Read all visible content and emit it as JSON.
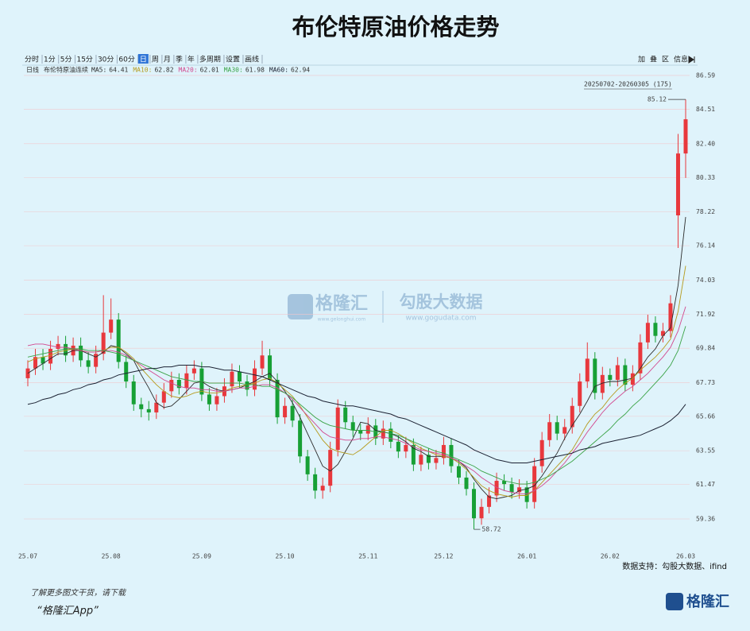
{
  "header": {
    "title": "布伦特原油价格走势"
  },
  "toolbar": {
    "left": [
      "分时",
      "1分",
      "5分",
      "15分",
      "30分",
      "60分",
      "日",
      "周",
      "月",
      "季",
      "年",
      "多周期",
      "设置",
      "画线"
    ],
    "selected": 6,
    "right": [
      "加",
      "叠",
      "区",
      "信息"
    ]
  },
  "chart_data": {
    "type": "candlestick",
    "period": "日线",
    "name": "布伦特原油连续",
    "range_label": "20250702-20260305 (175)",
    "source": "数据支持：勾股大数据、ifind",
    "categories": [
      "25.07",
      null,
      null,
      null,
      null,
      null,
      null,
      null,
      null,
      null,
      null,
      "25.08",
      null,
      null,
      null,
      null,
      null,
      null,
      null,
      null,
      null,
      null,
      null,
      "25.09",
      null,
      null,
      null,
      null,
      null,
      null,
      null,
      null,
      null,
      null,
      "25.10",
      null,
      null,
      null,
      null,
      null,
      null,
      null,
      null,
      null,
      null,
      "25.11",
      null,
      null,
      null,
      null,
      null,
      null,
      null,
      null,
      null,
      "25.12",
      null,
      null,
      null,
      null,
      null,
      null,
      null,
      null,
      null,
      null,
      "26.01",
      null,
      null,
      null,
      null,
      null,
      null,
      null,
      null,
      null,
      null,
      "26.02",
      null,
      null,
      null,
      null,
      null,
      null,
      null,
      null,
      null,
      "26.03"
    ],
    "open": [
      68.0,
      68.6,
      69.3,
      68.9,
      69.8,
      70.1,
      69.4,
      70.0,
      69.1,
      68.7,
      69.5,
      70.8,
      71.6,
      69.0,
      67.8,
      66.4,
      66.1,
      65.9,
      66.5,
      67.2,
      67.9,
      67.4,
      68.3,
      68.6,
      67.0,
      66.4,
      66.9,
      67.5,
      68.4,
      67.8,
      67.3,
      68.6,
      69.4,
      67.9,
      65.6,
      66.3,
      65.4,
      63.2,
      62.1,
      61.1,
      61.4,
      63.6,
      66.2,
      65.3,
      64.8,
      64.6,
      65.1,
      64.3,
      64.9,
      64.1,
      63.5,
      63.9,
      62.7,
      63.3,
      62.8,
      63.1,
      63.9,
      62.6,
      61.9,
      61.2,
      59.4,
      60.1,
      60.8,
      61.7,
      61.5,
      61.0,
      61.3,
      60.4,
      62.6,
      64.2,
      65.3,
      64.6,
      65.0,
      66.3,
      67.8,
      69.2,
      67.1,
      68.2,
      67.9,
      68.8,
      67.6,
      68.3,
      70.2,
      71.4,
      70.6,
      70.9,
      78.0,
      81.8
    ],
    "high": [
      69.1,
      69.8,
      69.8,
      70.3,
      70.6,
      70.6,
      70.5,
      70.5,
      69.6,
      70.0,
      73.1,
      72.9,
      72.0,
      69.4,
      68.2,
      66.8,
      66.6,
      67.0,
      67.7,
      68.4,
      68.3,
      68.8,
      69.1,
      69.0,
      67.4,
      67.4,
      68.0,
      68.9,
      68.8,
      68.2,
      69.1,
      70.3,
      69.8,
      68.3,
      66.8,
      66.7,
      65.8,
      63.6,
      62.5,
      61.9,
      64.1,
      66.7,
      66.6,
      65.7,
      65.2,
      65.6,
      65.5,
      65.4,
      65.3,
      64.5,
      64.4,
      64.3,
      63.8,
      63.7,
      63.6,
      64.4,
      64.3,
      63.0,
      62.3,
      61.6,
      60.6,
      61.3,
      62.2,
      62.1,
      61.9,
      61.8,
      61.7,
      63.1,
      64.7,
      65.8,
      65.7,
      65.5,
      66.8,
      68.3,
      70.2,
      69.6,
      68.7,
      68.6,
      69.3,
      69.2,
      68.8,
      70.7,
      71.9,
      71.8,
      71.4,
      73.1,
      83.0,
      85.12
    ],
    "low": [
      67.5,
      68.2,
      68.5,
      68.5,
      69.4,
      69.0,
      69.0,
      68.7,
      68.3,
      68.3,
      69.1,
      70.4,
      68.6,
      67.4,
      66.0,
      65.6,
      65.4,
      65.5,
      66.1,
      66.8,
      67.0,
      67.0,
      67.9,
      66.6,
      66.0,
      66.0,
      66.5,
      67.1,
      67.4,
      66.9,
      66.9,
      68.2,
      67.5,
      65.2,
      65.2,
      65.0,
      62.8,
      61.7,
      60.6,
      60.6,
      61.0,
      63.2,
      64.9,
      64.4,
      64.2,
      64.2,
      63.9,
      63.9,
      63.7,
      63.1,
      63.1,
      62.3,
      62.3,
      62.4,
      62.4,
      62.7,
      62.2,
      61.5,
      60.8,
      58.72,
      59.0,
      59.7,
      60.4,
      61.1,
      60.6,
      60.6,
      60.0,
      60.0,
      62.2,
      63.8,
      64.2,
      64.2,
      64.6,
      65.9,
      67.4,
      66.7,
      66.7,
      67.5,
      67.5,
      67.2,
      67.2,
      67.9,
      69.8,
      70.2,
      70.2,
      70.5,
      76.0,
      80.3
    ],
    "close": [
      68.6,
      69.3,
      68.9,
      69.8,
      70.1,
      69.4,
      70.0,
      69.1,
      68.7,
      69.5,
      70.8,
      71.6,
      69.0,
      67.8,
      66.4,
      66.1,
      65.9,
      66.5,
      67.2,
      67.9,
      67.4,
      68.3,
      68.6,
      67.0,
      66.4,
      66.9,
      67.5,
      68.4,
      67.8,
      67.3,
      68.6,
      69.4,
      67.9,
      65.6,
      66.3,
      65.4,
      63.2,
      62.1,
      61.1,
      61.4,
      63.6,
      66.2,
      65.3,
      64.8,
      64.6,
      65.1,
      64.3,
      64.9,
      64.1,
      63.5,
      63.9,
      62.7,
      63.3,
      62.8,
      63.1,
      63.9,
      62.6,
      61.9,
      61.2,
      59.4,
      60.1,
      60.8,
      61.7,
      61.5,
      61.0,
      61.3,
      60.4,
      62.6,
      64.2,
      65.3,
      64.6,
      65.0,
      66.3,
      67.8,
      69.2,
      67.1,
      68.2,
      67.9,
      68.8,
      67.6,
      68.3,
      70.2,
      71.4,
      70.6,
      70.9,
      72.6,
      81.8,
      83.9
    ],
    "up_color": "#e8383d",
    "down_color": "#17a035",
    "ylim": [
      57.31,
      86.93
    ],
    "yticks": [
      86.59,
      84.51,
      {
        "value": 82.4,
        "label": "82.40"
      },
      80.33,
      78.22,
      76.14,
      74.03,
      71.92,
      69.84,
      67.73,
      65.66,
      63.55,
      61.47,
      59.36
    ],
    "grid": true,
    "series": [
      {
        "name": "MA5:",
        "current": 64.41,
        "color": "#2b2b2b",
        "values": [
          68.3,
          68.6,
          68.9,
          69.2,
          69.5,
          69.5,
          69.7,
          69.7,
          69.5,
          69.3,
          69.6,
          70.0,
          69.9,
          69.5,
          69.1,
          68.2,
          67.4,
          66.5,
          66.2,
          66.3,
          66.7,
          67.2,
          67.7,
          67.8,
          67.5,
          67.3,
          67.2,
          67.3,
          67.4,
          67.6,
          67.8,
          68.1,
          68.3,
          67.8,
          67.2,
          66.5,
          65.6,
          64.6,
          63.6,
          62.6,
          62.3,
          62.7,
          63.5,
          64.3,
          65.3,
          65.2,
          64.8,
          64.7,
          64.6,
          64.4,
          64.1,
          63.7,
          63.5,
          63.2,
          63.2,
          63.2,
          63.1,
          62.9,
          62.5,
          61.8,
          61.2,
          60.7,
          60.6,
          60.7,
          60.8,
          61.1,
          61.2,
          61.4,
          62.0,
          62.7,
          63.4,
          64.3,
          65.1,
          65.8,
          66.6,
          67.5,
          67.7,
          67.8,
          67.8,
          67.9,
          68.0,
          68.6,
          69.3,
          69.8,
          70.6,
          71.1,
          73.7,
          77.9
        ]
      },
      {
        "name": "MA10:",
        "current": 62.82,
        "color": "#b59a1c",
        "values": [
          69.0,
          69.2,
          69.3,
          69.4,
          69.6,
          69.7,
          69.8,
          69.7,
          69.6,
          69.6,
          69.7,
          69.9,
          69.9,
          69.6,
          69.2,
          68.6,
          68.1,
          67.6,
          67.2,
          66.9,
          66.8,
          66.9,
          67.1,
          67.2,
          67.1,
          67.1,
          67.2,
          67.4,
          67.5,
          67.6,
          67.7,
          67.9,
          68.0,
          67.7,
          67.3,
          66.9,
          66.3,
          65.6,
          64.9,
          64.2,
          63.7,
          63.5,
          63.4,
          63.3,
          63.6,
          64.0,
          64.4,
          64.8,
          64.8,
          64.6,
          64.3,
          64.0,
          63.7,
          63.5,
          63.3,
          63.2,
          63.1,
          62.8,
          62.4,
          61.9,
          61.4,
          61.1,
          60.9,
          60.8,
          60.7,
          60.8,
          60.8,
          61.1,
          61.6,
          62.1,
          62.6,
          63.1,
          63.6,
          64.4,
          65.2,
          65.8,
          66.2,
          66.8,
          67.3,
          67.7,
          68.0,
          68.5,
          68.9,
          69.3,
          69.8,
          70.4,
          72.1,
          74.9
        ]
      },
      {
        "name": "MA20:",
        "current": 62.01,
        "color": "#d2478e",
        "values": [
          70.0,
          70.1,
          70.1,
          70.0,
          69.9,
          69.9,
          69.8,
          69.7,
          69.6,
          69.6,
          69.7,
          69.7,
          69.6,
          69.4,
          69.1,
          68.8,
          68.5,
          68.2,
          67.9,
          67.7,
          67.5,
          67.4,
          67.4,
          67.3,
          67.3,
          67.2,
          67.2,
          67.3,
          67.4,
          67.4,
          67.5,
          67.6,
          67.6,
          67.4,
          67.1,
          66.7,
          66.2,
          65.7,
          65.2,
          64.7,
          64.4,
          64.3,
          64.2,
          64.2,
          64.3,
          64.3,
          64.4,
          64.4,
          64.3,
          64.2,
          64.0,
          63.8,
          63.6,
          63.5,
          63.4,
          63.3,
          63.1,
          62.9,
          62.6,
          62.3,
          61.9,
          61.6,
          61.3,
          61.1,
          61.0,
          60.9,
          60.9,
          61.1,
          61.4,
          61.8,
          62.3,
          62.8,
          63.4,
          64.0,
          64.7,
          65.3,
          65.9,
          66.4,
          66.8,
          67.2,
          67.5,
          67.9,
          68.3,
          68.8,
          69.3,
          69.9,
          70.9,
          72.4
        ]
      },
      {
        "name": "MA30:",
        "current": 61.98,
        "color": "#3aa346",
        "values": [
          69.3,
          69.4,
          69.5,
          69.6,
          69.7,
          69.8,
          69.8,
          69.8,
          69.7,
          69.7,
          69.7,
          69.6,
          69.5,
          69.3,
          69.1,
          68.9,
          68.7,
          68.5,
          68.3,
          68.1,
          68.0,
          67.9,
          67.8,
          67.8,
          67.7,
          67.7,
          67.7,
          67.7,
          67.7,
          67.6,
          67.6,
          67.5,
          67.5,
          67.3,
          67.1,
          66.8,
          66.4,
          66.0,
          65.6,
          65.3,
          65.1,
          65.0,
          64.9,
          64.8,
          64.8,
          64.8,
          64.7,
          64.7,
          64.6,
          64.5,
          64.3,
          64.1,
          63.9,
          63.7,
          63.5,
          63.4,
          63.2,
          63.0,
          62.8,
          62.6,
          62.3,
          62.1,
          61.9,
          61.7,
          61.6,
          61.5,
          61.5,
          61.6,
          61.8,
          62.0,
          62.3,
          62.6,
          62.9,
          63.3,
          63.7,
          64.1,
          64.5,
          64.9,
          65.4,
          65.8,
          66.3,
          66.7,
          67.2,
          67.7,
          68.2,
          68.8,
          69.7,
          71.2
        ]
      },
      {
        "name": "MA60:",
        "current": 62.94,
        "color": "#1c2233",
        "values": [
          66.4,
          66.5,
          66.7,
          66.8,
          67.0,
          67.1,
          67.3,
          67.4,
          67.6,
          67.7,
          67.9,
          68.0,
          68.2,
          68.3,
          68.4,
          68.5,
          68.6,
          68.6,
          68.7,
          68.7,
          68.8,
          68.8,
          68.8,
          68.7,
          68.7,
          68.6,
          68.5,
          68.5,
          68.4,
          68.3,
          68.2,
          68.1,
          67.9,
          67.7,
          67.5,
          67.3,
          67.1,
          66.9,
          66.8,
          66.6,
          66.5,
          66.4,
          66.3,
          66.3,
          66.2,
          66.1,
          66.0,
          65.9,
          65.8,
          65.6,
          65.5,
          65.3,
          65.1,
          64.9,
          64.7,
          64.5,
          64.3,
          64.1,
          63.9,
          63.6,
          63.4,
          63.2,
          63.0,
          62.9,
          62.8,
          62.8,
          62.8,
          62.9,
          63.0,
          63.1,
          63.2,
          63.3,
          63.4,
          63.6,
          63.7,
          63.8,
          64.0,
          64.1,
          64.2,
          64.3,
          64.4,
          64.5,
          64.7,
          64.9,
          65.1,
          65.4,
          65.8,
          66.4
        ]
      }
    ]
  },
  "watermark": {
    "brand": "格隆汇",
    "brand_url": "www.gelonghui.com",
    "partner": "勾股大数据",
    "partner_url": "www.gogudata.com"
  },
  "footer": {
    "note": "了解更多图文干货，请下载",
    "app": "“格隆汇App”",
    "logo": "格隆汇"
  }
}
